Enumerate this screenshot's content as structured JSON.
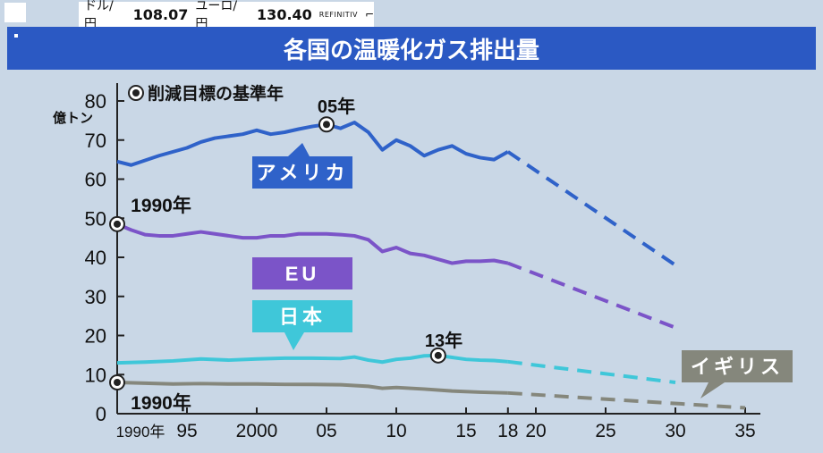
{
  "ticker": {
    "usd_label": "ドル/円",
    "usd_value": "108.07",
    "eur_label": "ユーロ/円",
    "eur_value": "130.40",
    "source": "REFINITIV"
  },
  "banner": {
    "title": "各国の温暖化ガス排出量"
  },
  "chart_data": {
    "type": "line",
    "title": "各国の温暖化ガス排出量",
    "ylabel": "億トン",
    "xlabel": "",
    "ylim": [
      0,
      80
    ],
    "xlim": [
      1990,
      2035
    ],
    "yticks": [
      0,
      10,
      20,
      30,
      40,
      50,
      60,
      70,
      80
    ],
    "xticks": [
      {
        "x": 1990,
        "label": "1990年"
      },
      {
        "x": 1995,
        "label": "95"
      },
      {
        "x": 2000,
        "label": "2000"
      },
      {
        "x": 2005,
        "label": "05"
      },
      {
        "x": 2010,
        "label": "10"
      },
      {
        "x": 2015,
        "label": "15"
      },
      {
        "x": 2018,
        "label": "18"
      },
      {
        "x": 2020,
        "label": "20"
      },
      {
        "x": 2025,
        "label": "25"
      },
      {
        "x": 2030,
        "label": "30"
      },
      {
        "x": 2035,
        "label": "35"
      }
    ],
    "grid": false,
    "legend_note": "削減目標の基準年",
    "series": [
      {
        "name": "アメリカ",
        "color": "#2f62c9",
        "x": [
          1990,
          1991,
          1992,
          1993,
          1994,
          1995,
          1996,
          1997,
          1998,
          1999,
          2000,
          2001,
          2002,
          2003,
          2004,
          2005,
          2006,
          2007,
          2008,
          2009,
          2010,
          2011,
          2012,
          2013,
          2014,
          2015,
          2016,
          2017,
          2018
        ],
        "values": [
          64.5,
          63.6,
          64.8,
          66,
          67,
          68,
          69.5,
          70.5,
          71,
          71.5,
          72.5,
          71.5,
          72,
          72.8,
          73.5,
          74,
          73,
          74.5,
          72,
          67.5,
          70,
          68.5,
          66,
          67.5,
          68.5,
          66.5,
          65.5,
          65,
          67
        ],
        "target_x": [
          2018,
          2030
        ],
        "target_values": [
          67,
          38
        ],
        "base_year": {
          "x": 2005,
          "y": 74,
          "label": "05年"
        }
      },
      {
        "name": "EU",
        "color": "#7b54c8",
        "x": [
          1990,
          1991,
          1992,
          1993,
          1994,
          1995,
          1996,
          1997,
          1998,
          1999,
          2000,
          2001,
          2002,
          2003,
          2004,
          2005,
          2006,
          2007,
          2008,
          2009,
          2010,
          2011,
          2012,
          2013,
          2014,
          2015,
          2016,
          2017,
          2018
        ],
        "values": [
          48.5,
          47,
          45.8,
          45.5,
          45.5,
          46,
          46.5,
          46,
          45.5,
          45,
          45,
          45.5,
          45.5,
          46,
          46,
          46,
          45.8,
          45.5,
          44.5,
          41.5,
          42.5,
          41,
          40.5,
          39.5,
          38.5,
          39,
          39,
          39.2,
          38.5
        ],
        "target_x": [
          2018,
          2030
        ],
        "target_values": [
          38.5,
          22
        ],
        "base_year": {
          "x": 1990,
          "y": 48.5,
          "label": "1990年"
        }
      },
      {
        "name": "日本",
        "color": "#3fc7d9",
        "x": [
          1990,
          1992,
          1994,
          1996,
          1998,
          2000,
          2002,
          2004,
          2006,
          2007,
          2008,
          2009,
          2010,
          2011,
          2012,
          2013,
          2014,
          2015,
          2016,
          2017,
          2018
        ],
        "values": [
          13,
          13.2,
          13.5,
          14,
          13.7,
          14,
          14.2,
          14.2,
          14.1,
          14.5,
          13.7,
          13.2,
          13.9,
          14.2,
          14.8,
          14.9,
          14.4,
          13.9,
          13.7,
          13.6,
          13.3
        ],
        "target_x": [
          2018,
          2030
        ],
        "target_values": [
          13.3,
          8
        ],
        "base_year": {
          "x": 2013,
          "y": 14.9,
          "label": "13年"
        }
      },
      {
        "name": "イギリス",
        "color": "#85877c",
        "x": [
          1990,
          1992,
          1994,
          1996,
          1998,
          2000,
          2002,
          2004,
          2006,
          2008,
          2009,
          2010,
          2012,
          2014,
          2016,
          2018
        ],
        "values": [
          8,
          7.8,
          7.6,
          7.7,
          7.6,
          7.6,
          7.5,
          7.5,
          7.4,
          7,
          6.5,
          6.7,
          6.3,
          5.8,
          5.5,
          5.3
        ],
        "target_x": [
          2018,
          2035
        ],
        "target_values": [
          5.3,
          1.5
        ],
        "base_year": {
          "x": 1990,
          "y": 8,
          "label": "1990年"
        }
      }
    ]
  }
}
